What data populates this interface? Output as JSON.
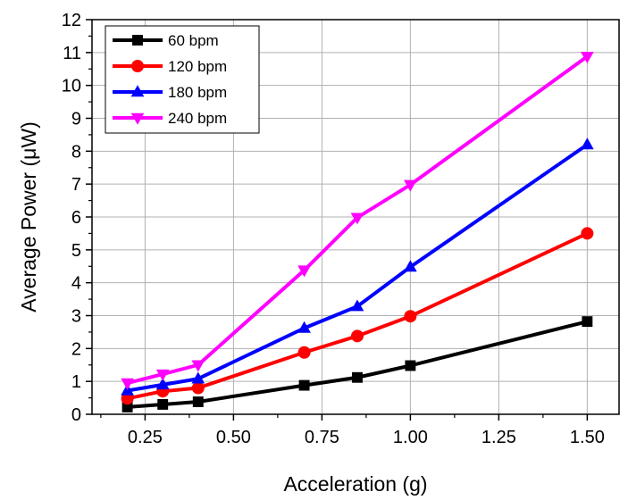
{
  "chart_data": {
    "type": "line",
    "title": "",
    "xlabel": "Acceleration (g)",
    "ylabel": "Average Power (μW)",
    "xlim": [
      0.1,
      1.59
    ],
    "ylim": [
      0,
      12
    ],
    "grid": true,
    "legend_position": "top-left",
    "x": [
      0.2,
      0.3,
      0.4,
      0.7,
      0.85,
      1.0,
      1.5
    ],
    "x_ticks": [
      "0.25",
      "0.50",
      "0.75",
      "1.00",
      "1.25",
      "1.50"
    ],
    "y_ticks": [
      "0",
      "1",
      "2",
      "3",
      "4",
      "5",
      "6",
      "7",
      "8",
      "9",
      "10",
      "11",
      "12"
    ],
    "series": [
      {
        "name": "60 bpm",
        "color": "#000000",
        "marker": "square",
        "values": [
          0.22,
          0.3,
          0.38,
          0.88,
          1.12,
          1.48,
          2.82
        ]
      },
      {
        "name": "120 bpm",
        "color": "#ff0000",
        "marker": "circle",
        "values": [
          0.48,
          0.7,
          0.8,
          1.88,
          2.38,
          2.98,
          5.5
        ]
      },
      {
        "name": "180 bpm",
        "color": "#0000ff",
        "marker": "triangle-up",
        "values": [
          0.72,
          0.9,
          1.08,
          2.62,
          3.28,
          4.48,
          8.2
        ]
      },
      {
        "name": "240 bpm",
        "color": "#ff00ff",
        "marker": "triangle-down",
        "values": [
          0.95,
          1.22,
          1.5,
          4.38,
          5.98,
          6.98,
          10.88
        ]
      }
    ]
  }
}
